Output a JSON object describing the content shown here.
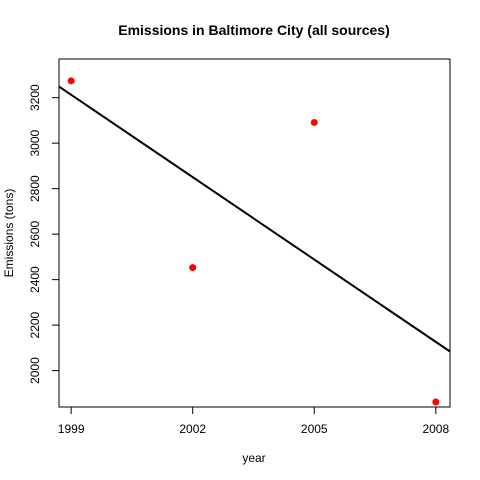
{
  "chart_data": {
    "type": "scatter",
    "title": "Emissions in Baltimore City (all sources)",
    "xlabel": "year",
    "ylabel": "Emissions (tons)",
    "xlim": [
      1998.7,
      2008.35
    ],
    "ylim": [
      1840,
      3370
    ],
    "x_ticks": [
      1999,
      2002,
      2005,
      2008
    ],
    "y_ticks": [
      2000,
      2200,
      2400,
      2600,
      2800,
      3000,
      3200
    ],
    "points": {
      "x": [
        1999,
        2002,
        2005,
        2008
      ],
      "y": [
        3274,
        2453,
        3091,
        1862
      ],
      "color": "#ff0000"
    },
    "trend_line": {
      "x": [
        1998.7,
        2008.35
      ],
      "y": [
        3249,
        2084
      ],
      "color": "#000000"
    },
    "grid": false,
    "legend": "none"
  }
}
